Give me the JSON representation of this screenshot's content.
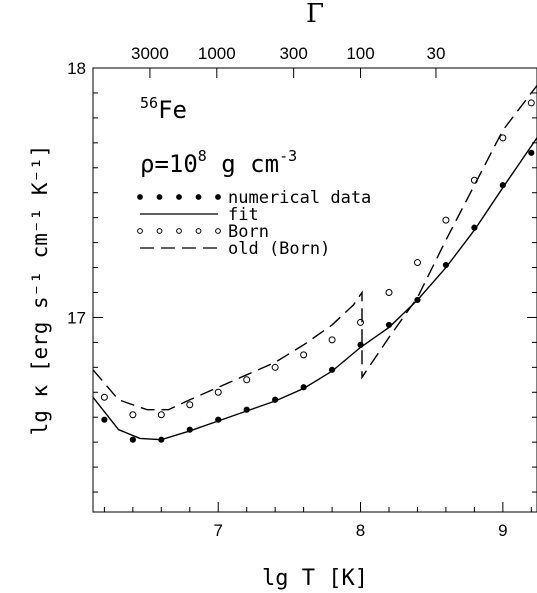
{
  "chart_data": {
    "type": "line",
    "xlabel": "lg T [K]",
    "ylabel": "lg κ  [erg s⁻¹ cm⁻¹ K⁻¹]",
    "top_axis_label": "Γ",
    "xlim": [
      6.12,
      9.24
    ],
    "ylim": [
      16.22,
      18.0
    ],
    "x_ticks": [
      7,
      8,
      9
    ],
    "y_ticks": [
      17,
      18
    ],
    "top_ticks": [
      {
        "label": "3000",
        "x": 6.52
      },
      {
        "label": "1000",
        "x": 6.99
      },
      {
        "label": "300",
        "x": 7.53
      },
      {
        "label": "100",
        "x": 8.0
      },
      {
        "label": "30",
        "x": 8.53
      }
    ],
    "annotations": {
      "element_sup": "56",
      "element": "Fe",
      "density_prefix": "ρ=10",
      "density_exp": "8",
      "density_unit": " g cm",
      "density_unit_exp": "-3"
    },
    "legend": [
      {
        "label": "numerical data",
        "style": "dots"
      },
      {
        "label": "fit",
        "style": "solid"
      },
      {
        "label": "Born",
        "style": "open-circles"
      },
      {
        "label": "old (Born)",
        "style": "dashed"
      }
    ],
    "series": [
      {
        "name": "numerical data",
        "style": "dots",
        "x": [
          6.2,
          6.4,
          6.6,
          6.8,
          7.0,
          7.2,
          7.4,
          7.6,
          7.8,
          8.0,
          8.2,
          8.4,
          8.6,
          8.8,
          9.0,
          9.2
        ],
        "y": [
          16.59,
          16.51,
          16.51,
          16.55,
          16.59,
          16.63,
          16.67,
          16.72,
          16.79,
          16.89,
          16.97,
          17.07,
          17.21,
          17.36,
          17.53,
          17.66
        ]
      },
      {
        "name": "fit",
        "style": "solid",
        "x": [
          6.12,
          6.3,
          6.45,
          6.6,
          6.8,
          7.0,
          7.2,
          7.4,
          7.6,
          7.8,
          8.0,
          8.2,
          8.4,
          8.6,
          8.8,
          9.0,
          9.24
        ],
        "y": [
          16.68,
          16.55,
          16.515,
          16.51,
          16.545,
          16.585,
          16.625,
          16.665,
          16.715,
          16.785,
          16.88,
          16.96,
          17.07,
          17.2,
          17.35,
          17.52,
          17.72
        ]
      },
      {
        "name": "Born",
        "style": "open-circles",
        "x": [
          6.2,
          6.4,
          6.6,
          6.8,
          7.0,
          7.2,
          7.4,
          7.6,
          7.8,
          8.0,
          8.2,
          8.4,
          8.6,
          8.8,
          9.0,
          9.2
        ],
        "y": [
          16.68,
          16.61,
          16.61,
          16.65,
          16.7,
          16.75,
          16.8,
          16.85,
          16.91,
          16.98,
          17.1,
          17.22,
          17.39,
          17.55,
          17.72,
          17.86
        ]
      },
      {
        "name": "old (Born)",
        "style": "dashed",
        "x": [
          6.12,
          6.3,
          6.5,
          6.65,
          6.8,
          7.0,
          7.2,
          7.4,
          7.6,
          7.8,
          7.95,
          8.01,
          8.01,
          8.2,
          8.4,
          8.6,
          8.8,
          9.0,
          9.24
        ],
        "y": [
          16.79,
          16.67,
          16.63,
          16.63,
          16.67,
          16.72,
          16.77,
          16.82,
          16.89,
          16.97,
          17.05,
          17.1,
          16.76,
          16.92,
          17.08,
          17.31,
          17.53,
          17.75,
          17.93
        ]
      }
    ]
  }
}
